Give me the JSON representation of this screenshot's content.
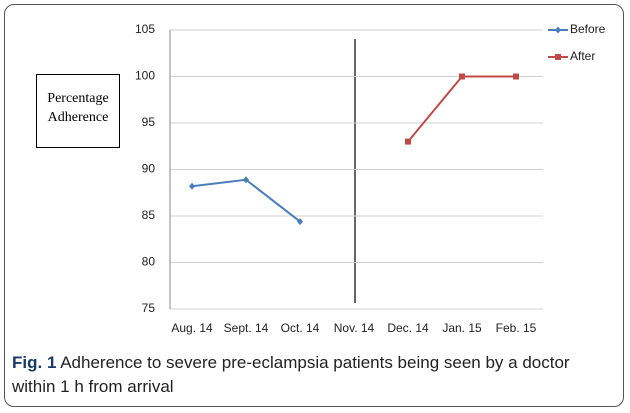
{
  "chart_data": {
    "type": "line",
    "categories": [
      "Aug. 14",
      "Sept. 14",
      "Oct. 14",
      "Nov. 14",
      "Dec. 14",
      "Jan. 15",
      "Feb. 15"
    ],
    "series": [
      {
        "name": "Before",
        "color": "#4a7ebb",
        "values": [
          88.2,
          88.9,
          84.4,
          null,
          null,
          null,
          null
        ]
      },
      {
        "name": "After",
        "color": "#be4b48",
        "values": [
          null,
          null,
          null,
          null,
          93,
          100,
          100
        ]
      }
    ],
    "ylabel": "Percentage Adherence",
    "ylim": [
      75,
      105
    ],
    "yticks": [
      75,
      80,
      85,
      90,
      95,
      100,
      105
    ],
    "grid": true,
    "legend": "right",
    "caption_label": "Fig. 1",
    "caption": "Adherence to severe pre-eclampsia patients being seen by a doctor within 1 h from arrival"
  }
}
